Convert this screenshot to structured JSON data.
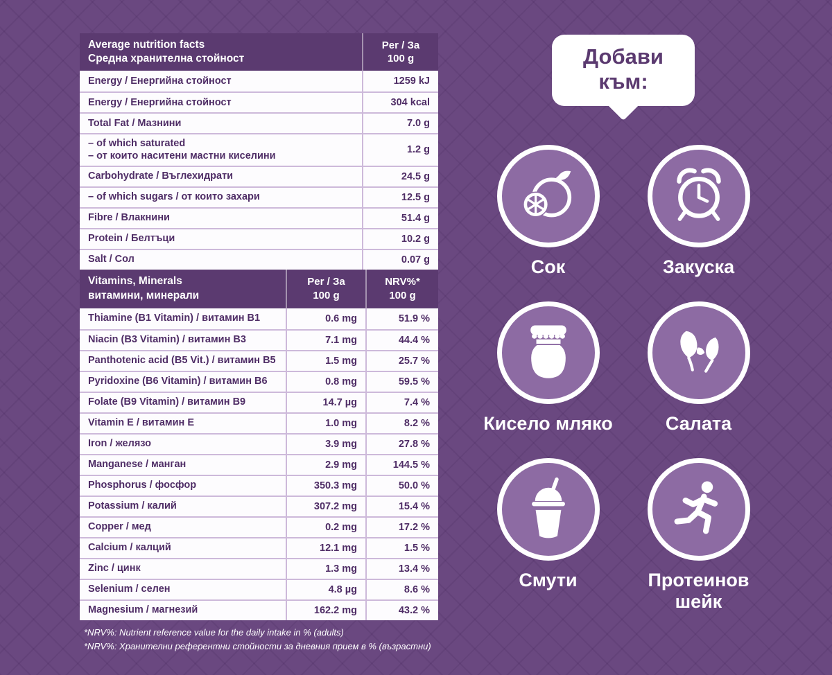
{
  "colors": {
    "background_purple": "#6a4880",
    "header_purple": "#5b3a70",
    "row_background": "#fdfcfe",
    "row_text_purple": "#4f2d66",
    "row_divider": "#cdb9da",
    "icon_circle_fill": "#8d6ba3",
    "icon_ring_white": "#ffffff"
  },
  "nutrition": {
    "header": {
      "title_en": "Average nutrition facts",
      "title_bg": "Средна хранителна стойност",
      "per_line1": "Per / За",
      "per_line2": "100 g"
    },
    "rows": [
      {
        "label": "Energy / Енергийна стойност",
        "value": "1259 kJ"
      },
      {
        "label": "Energy / Енергийна стойност",
        "value": "304 kcal"
      },
      {
        "label": "Total Fat / Мазнини",
        "value": "7.0 g"
      },
      {
        "label": "– of which saturated\n– от които наситени мастни киселини",
        "value": "1.2 g"
      },
      {
        "label": "Carbohydrate / Въглехидрати",
        "value": "24.5 g"
      },
      {
        "label": "– of which sugars / от които захари",
        "value": "12.5 g"
      },
      {
        "label": "Fibre / Влакнини",
        "value": "51.4 g"
      },
      {
        "label": "Protein / Белтъци",
        "value": "10.2 g"
      },
      {
        "label": "Salt / Сол",
        "value": "0.07 g"
      }
    ],
    "vitamins_header": {
      "title_en": "Vitamins, Minerals",
      "title_bg": "витамини, минерали",
      "per_line1": "Per / За",
      "per_line2": "100 g",
      "nrv_line1": "NRV%*",
      "nrv_line2": "100 g"
    },
    "vitamin_rows": [
      {
        "label": "Thiamine (B1 Vitamin) / витамин B1",
        "value": "0.6 mg",
        "nrv": "51.9 %"
      },
      {
        "label": "Niacin (B3 Vitamin) / витамин B3",
        "value": "7.1 mg",
        "nrv": "44.4 %"
      },
      {
        "label": "Panthotenic acid (B5 Vit.) / витамин B5",
        "value": "1.5 mg",
        "nrv": "25.7 %"
      },
      {
        "label": "Pyridoxine (B6 Vitamin) / витамин B6",
        "value": "0.8 mg",
        "nrv": "59.5 %"
      },
      {
        "label": "Folate (B9 Vitamin) / витамин B9",
        "value": "14.7 µg",
        "nrv": "7.4 %"
      },
      {
        "label": "Vitamin E / витамин E",
        "value": "1.0 mg",
        "nrv": "8.2 %"
      },
      {
        "label": "Iron / желязо",
        "value": "3.9 mg",
        "nrv": "27.8 %"
      },
      {
        "label": "Manganese / манган",
        "value": "2.9 mg",
        "nrv": "144.5 %"
      },
      {
        "label": "Phosphorus / фосфор",
        "value": "350.3 mg",
        "nrv": "50.0 %"
      },
      {
        "label": "Potassium / калий",
        "value": "307.2 mg",
        "nrv": "15.4 %"
      },
      {
        "label": "Copper / мед",
        "value": "0.2 mg",
        "nrv": "17.2 %"
      },
      {
        "label": "Calcium / калций",
        "value": "12.1 mg",
        "nrv": "1.5 %"
      },
      {
        "label": "Zinc / цинк",
        "value": "1.3 mg",
        "nrv": "13.4 %"
      },
      {
        "label": "Selenium / селен",
        "value": "4.8 µg",
        "nrv": "8.6 %"
      },
      {
        "label": "Magnesium / магнезий",
        "value": "162.2 mg",
        "nrv": "43.2 %"
      }
    ],
    "footnotes": [
      "*NRV%: Nutrient reference value for the daily intake in % (adults)",
      "*NRV%: Хранителни референтни стойности за дневния прием в % (възрастни)"
    ]
  },
  "add_to": {
    "banner": "Добави към:",
    "items": [
      {
        "label": "Сок",
        "icon": "juice-orange-icon"
      },
      {
        "label": "Закуска",
        "icon": "breakfast-alarm-clock-icon"
      },
      {
        "label": "Кисело мляко",
        "icon": "yogurt-jar-icon"
      },
      {
        "label": "Салата",
        "icon": "salad-leaves-icon"
      },
      {
        "label": "Смути",
        "icon": "smoothie-cup-icon"
      },
      {
        "label": "Протеинов шейк",
        "icon": "protein-shake-runner-icon"
      }
    ]
  }
}
